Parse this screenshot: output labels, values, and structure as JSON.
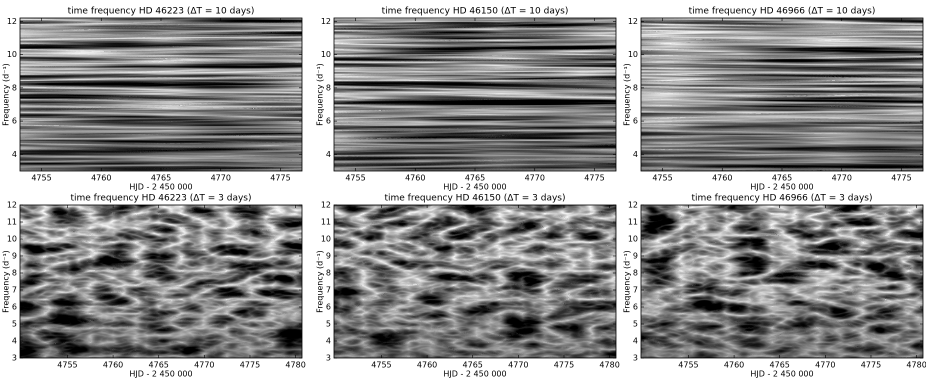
{
  "chart_data": [
    {
      "type": "heatmap",
      "title": "time frequency HD 46223 (ΔT = 10 days)",
      "xlabel": "HJD - 2 450 000",
      "ylabel": "Frequency (d⁻¹)",
      "xlim": [
        4753.2,
        4776.8
      ],
      "xticks": [
        4755,
        4760,
        4765,
        4770,
        4775
      ],
      "ylim": [
        3,
        12.2
      ],
      "yticks": [
        4,
        6,
        8,
        10,
        12
      ]
    },
    {
      "type": "heatmap",
      "title": "time frequency HD 46150 (ΔT = 10 days)",
      "xlabel": "HJD - 2 450 000",
      "ylabel": "Frequency (d⁻¹)",
      "xlim": [
        4753.2,
        4776.8
      ],
      "xticks": [
        4755,
        4760,
        4765,
        4770,
        4775
      ],
      "ylim": [
        3,
        12.2
      ],
      "yticks": [
        4,
        6,
        8,
        10,
        12
      ]
    },
    {
      "type": "heatmap",
      "title": "time frequency HD 46966 (ΔT = 10 days)",
      "xlabel": "HJD - 2 450 000",
      "ylabel": "Frequency (d⁻¹)",
      "xlim": [
        4753.2,
        4776.8
      ],
      "xticks": [
        4755,
        4760,
        4765,
        4770,
        4775
      ],
      "ylim": [
        3,
        12.2
      ],
      "yticks": [
        4,
        6,
        8,
        10,
        12
      ]
    },
    {
      "type": "heatmap",
      "title": "time frequency HD 46223 (ΔT = 3 days)",
      "xlabel": "HJD - 2 450 000",
      "ylabel": "Frequency (d⁻¹)",
      "xlim": [
        4749.8,
        4780.7
      ],
      "xticks": [
        4755,
        4760,
        4765,
        4770,
        4775,
        4780
      ],
      "ylim": [
        3,
        12
      ],
      "yticks": [
        3,
        4,
        5,
        6,
        7,
        8,
        9,
        10,
        11,
        12
      ]
    },
    {
      "type": "heatmap",
      "title": "time frequency HD 46150 (ΔT = 3 days)",
      "xlabel": "HJD - 2 450 000",
      "ylabel": "Frequency (d⁻¹)",
      "xlim": [
        4749.8,
        4780.7
      ],
      "xticks": [
        4755,
        4760,
        4765,
        4770,
        4775,
        4780
      ],
      "ylim": [
        3,
        12
      ],
      "yticks": [
        3,
        4,
        5,
        6,
        7,
        8,
        9,
        10,
        11,
        12
      ]
    },
    {
      "type": "heatmap",
      "title": "time frequency HD 46966 (ΔT = 3 days)",
      "xlabel": "HJD - 2 450 000",
      "ylabel": "Frequency (d⁻¹)",
      "xlim": [
        4749.8,
        4780.7
      ],
      "xticks": [
        4755,
        4760,
        4765,
        4770,
        4775,
        4780
      ],
      "ylim": [
        3,
        12
      ],
      "yticks": [
        3,
        4,
        5,
        6,
        7,
        8,
        9,
        10,
        11,
        12
      ]
    }
  ]
}
